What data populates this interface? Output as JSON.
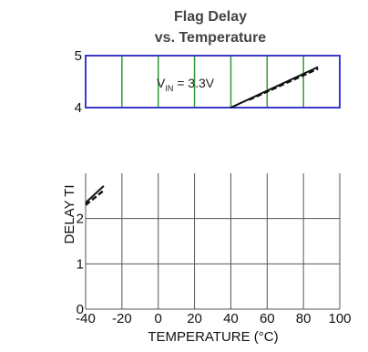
{
  "chart_data": {
    "type": "line",
    "title_line1": "Flag Delay",
    "title_line2": "vs. Temperature",
    "xlabel": "TEMPERATURE (°C)",
    "ylabel": "DELAY TI",
    "x_ticks": [
      -40,
      -20,
      0,
      20,
      40,
      60,
      80,
      100
    ],
    "y_ticks_lower": [
      0,
      1,
      2
    ],
    "y_ticks_upper": [
      4,
      5
    ],
    "xlim": [
      -40,
      100
    ],
    "annotation": {
      "label_main": "V",
      "label_sub": "IN",
      "label_rest": " = 3.3V"
    },
    "series": [
      {
        "style": "solid",
        "x": [
          40,
          88
        ],
        "y": [
          4.0,
          4.78
        ]
      },
      {
        "style": "dashed",
        "x": [
          50,
          88
        ],
        "y": [
          4.15,
          4.75
        ]
      },
      {
        "style": "solid",
        "x": [
          -40,
          -30
        ],
        "y": [
          2.35,
          2.72
        ]
      },
      {
        "style": "dashed",
        "x": [
          -40,
          -30
        ],
        "y": [
          2.3,
          2.62
        ]
      }
    ],
    "colors": {
      "upper_box": "#3a3ac8",
      "grid_upper": "#339933",
      "grid_lower": "#555555",
      "series": "#111111"
    }
  }
}
